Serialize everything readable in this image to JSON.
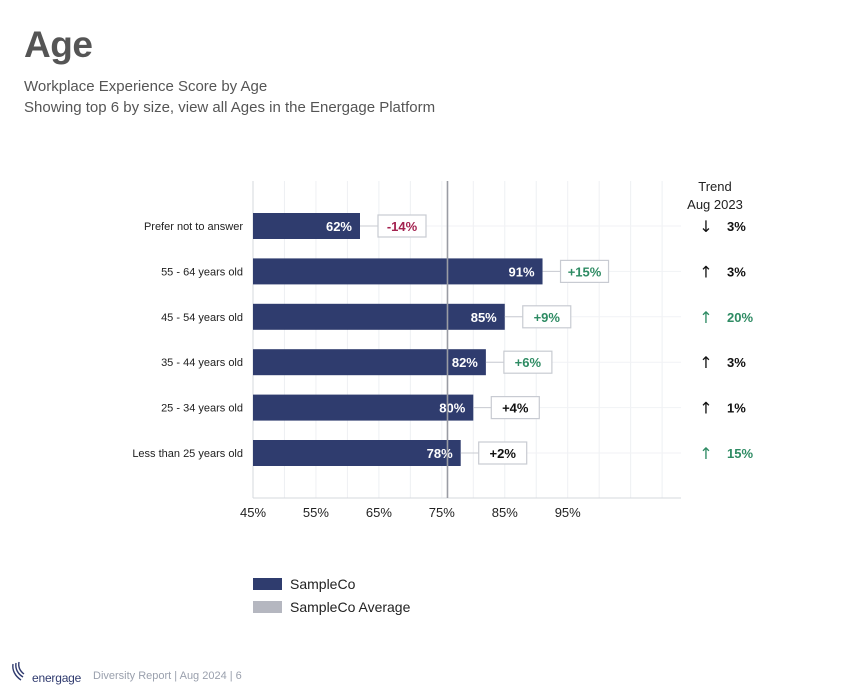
{
  "header": {
    "title": "Age",
    "subtitle_line1": "Workplace Experience Score by Age",
    "subtitle_line2": "Showing top 6 by size, view all Ages in the Energage Platform"
  },
  "colors": {
    "bar": "#2f3c6e",
    "average": "#b5b7c0",
    "positive": "#2e8b63",
    "negative": "#a3224f",
    "neutral": "#111111"
  },
  "chart_data": {
    "type": "bar",
    "orientation": "horizontal",
    "title": "Workplace Experience Score by Age",
    "categories": [
      "Prefer not to answer",
      "55 - 64 years old",
      "45 - 54 years old",
      "35 - 44 years old",
      "25 - 34 years old",
      "Less than 25 years old"
    ],
    "values": [
      62,
      91,
      85,
      82,
      80,
      78
    ],
    "value_labels": [
      "62%",
      "91%",
      "85%",
      "82%",
      "80%",
      "78%"
    ],
    "diffs": [
      "-14%",
      "+15%",
      "+9%",
      "+6%",
      "+4%",
      "+2%"
    ],
    "diff_colors": [
      "negative",
      "positive",
      "positive",
      "positive",
      "neutral",
      "neutral"
    ],
    "average": 75.9,
    "xlim": [
      45,
      113
    ],
    "xticks": [
      45,
      55,
      65,
      75,
      85,
      95
    ],
    "xtick_labels": [
      "45%",
      "55%",
      "65%",
      "75%",
      "85%",
      "95%"
    ],
    "trend_header": "Trend",
    "trend_date": "Aug 2023",
    "trend_arrows": [
      "↓",
      "↑",
      "↑",
      "↑",
      "↑",
      "↑"
    ],
    "trend_values": [
      "3%",
      "3%",
      "20%",
      "3%",
      "1%",
      "15%"
    ],
    "trend_colors": [
      "neutral",
      "neutral",
      "positive",
      "neutral",
      "neutral",
      "positive"
    ],
    "legend": [
      "SampleCo",
      "SampleCo Average"
    ],
    "grid": true
  },
  "footer": {
    "logo": "energage",
    "text": "Diversity Report | Aug 2024 | 6"
  }
}
